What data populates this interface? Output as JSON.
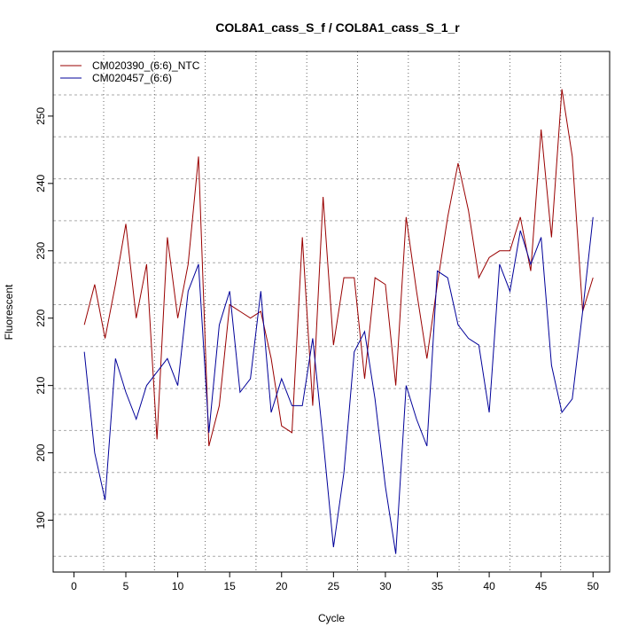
{
  "chart_data": {
    "type": "line",
    "title": "COL8A1_cass_S_f / COL8A1_cass_S_1_r",
    "xlabel": "Cycle",
    "ylabel": "Fluorescent",
    "xlim": [
      -2,
      51.6
    ],
    "ylim": [
      182.3,
      259.6
    ],
    "xticks": [
      0,
      5,
      10,
      15,
      20,
      25,
      30,
      35,
      40,
      45,
      50
    ],
    "yticks": [
      190,
      200,
      210,
      220,
      230,
      240,
      250
    ],
    "grid": true,
    "legend_position": "top-left",
    "series": [
      {
        "name": "CM020390_(6:6)_NTC",
        "color": "#990000",
        "values": [
          219,
          225,
          217,
          225,
          234,
          220,
          228,
          202,
          232,
          220,
          228,
          244,
          201,
          207,
          222,
          221,
          220,
          221,
          214,
          204,
          203,
          232,
          207,
          238,
          216,
          226,
          226,
          211,
          226,
          225,
          210,
          235,
          224,
          214,
          225,
          235,
          243,
          236,
          226,
          229,
          230,
          230,
          235,
          227,
          248,
          232,
          254,
          244,
          221,
          226
        ]
      },
      {
        "name": "CM020457_(6:6)",
        "color": "#000099",
        "values": [
          215,
          200,
          193,
          214,
          209,
          205,
          210,
          212,
          214,
          210,
          224,
          228,
          203,
          219,
          224,
          209,
          211,
          224,
          206,
          211,
          207,
          207,
          217,
          202,
          186,
          197,
          215,
          218,
          208,
          195,
          185,
          210,
          205,
          201,
          227,
          226,
          219,
          217,
          216,
          206,
          228,
          224,
          233,
          228,
          232,
          213,
          206,
          208,
          221,
          235
        ]
      }
    ]
  }
}
